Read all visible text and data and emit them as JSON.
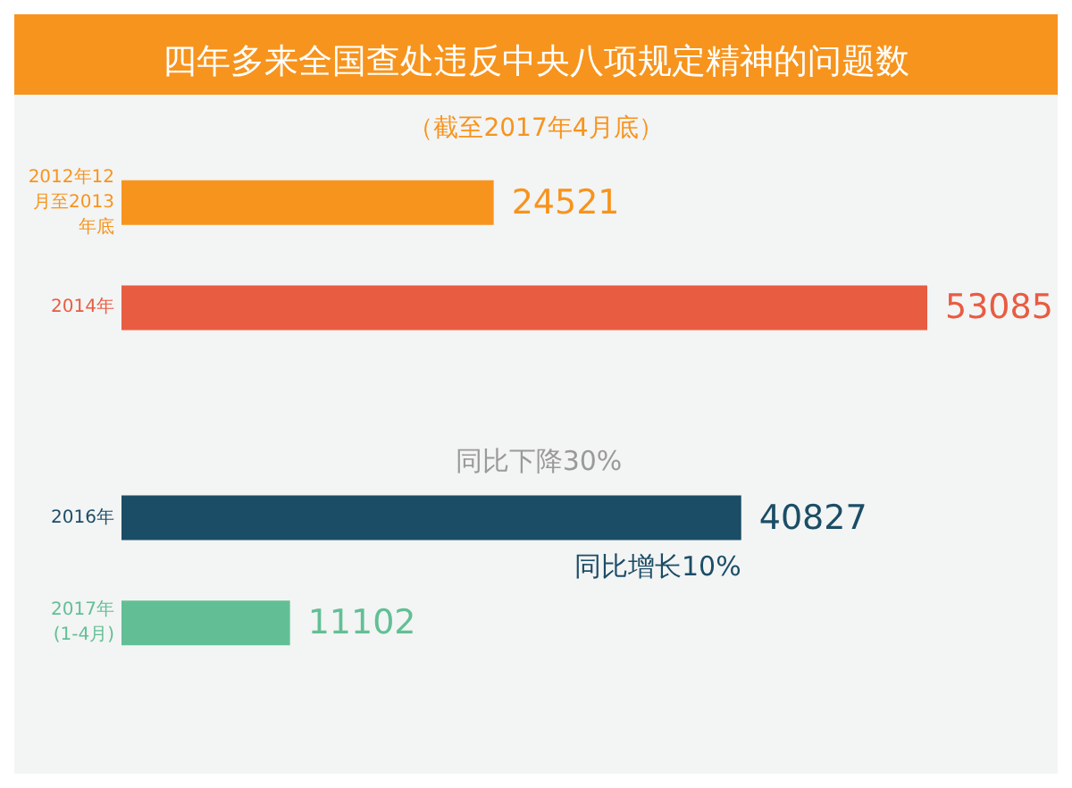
{
  "chart_data": {
    "type": "bar",
    "orientation": "horizontal",
    "title": "四年多来全国查处违反中央八项规定精神的问题数",
    "subtitle": "（截至2017年4月底）",
    "categories": [
      "2012年12月至2013年底",
      "2014年",
      null,
      "2016年",
      "2017年(1-4月)"
    ],
    "values": [
      24521,
      53085,
      null,
      40827,
      11102
    ],
    "colors": [
      "#f7941d",
      "#e85c41",
      "#9a9a9a",
      "#1b4d66",
      "#62bf95"
    ],
    "data_labels": true,
    "annotations": [
      "同比下降30%",
      "同比增长10%"
    ]
  }
}
